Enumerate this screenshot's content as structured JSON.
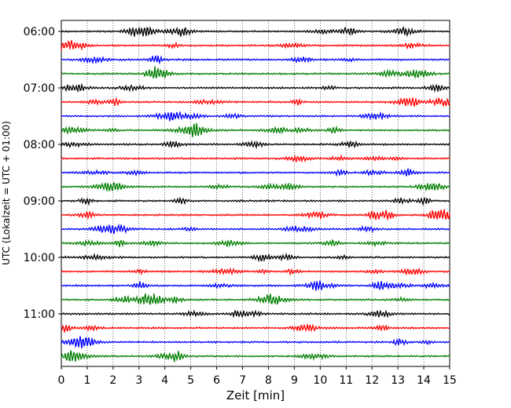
{
  "chart_data": {
    "type": "line",
    "title": "",
    "xlabel": "Zeit  [min]",
    "ylabel": "UTC (Lokalzeit = UTC + 01:00)",
    "xlim": [
      0,
      15
    ],
    "x_ticks": [
      "0",
      "1",
      "2",
      "3",
      "4",
      "5",
      "6",
      "7",
      "8",
      "9",
      "10",
      "11",
      "12",
      "13",
      "14",
      "15"
    ],
    "y_tick_labels": [
      "06:00",
      "07:00",
      "08:00",
      "09:00",
      "10:00",
      "11:00"
    ],
    "grid": "vertical dotted",
    "trace_interval_minutes": 15,
    "trace_count": 24,
    "trace_colors": [
      "#000000",
      "#ff0000",
      "#0000ff",
      "#007f00"
    ]
  }
}
